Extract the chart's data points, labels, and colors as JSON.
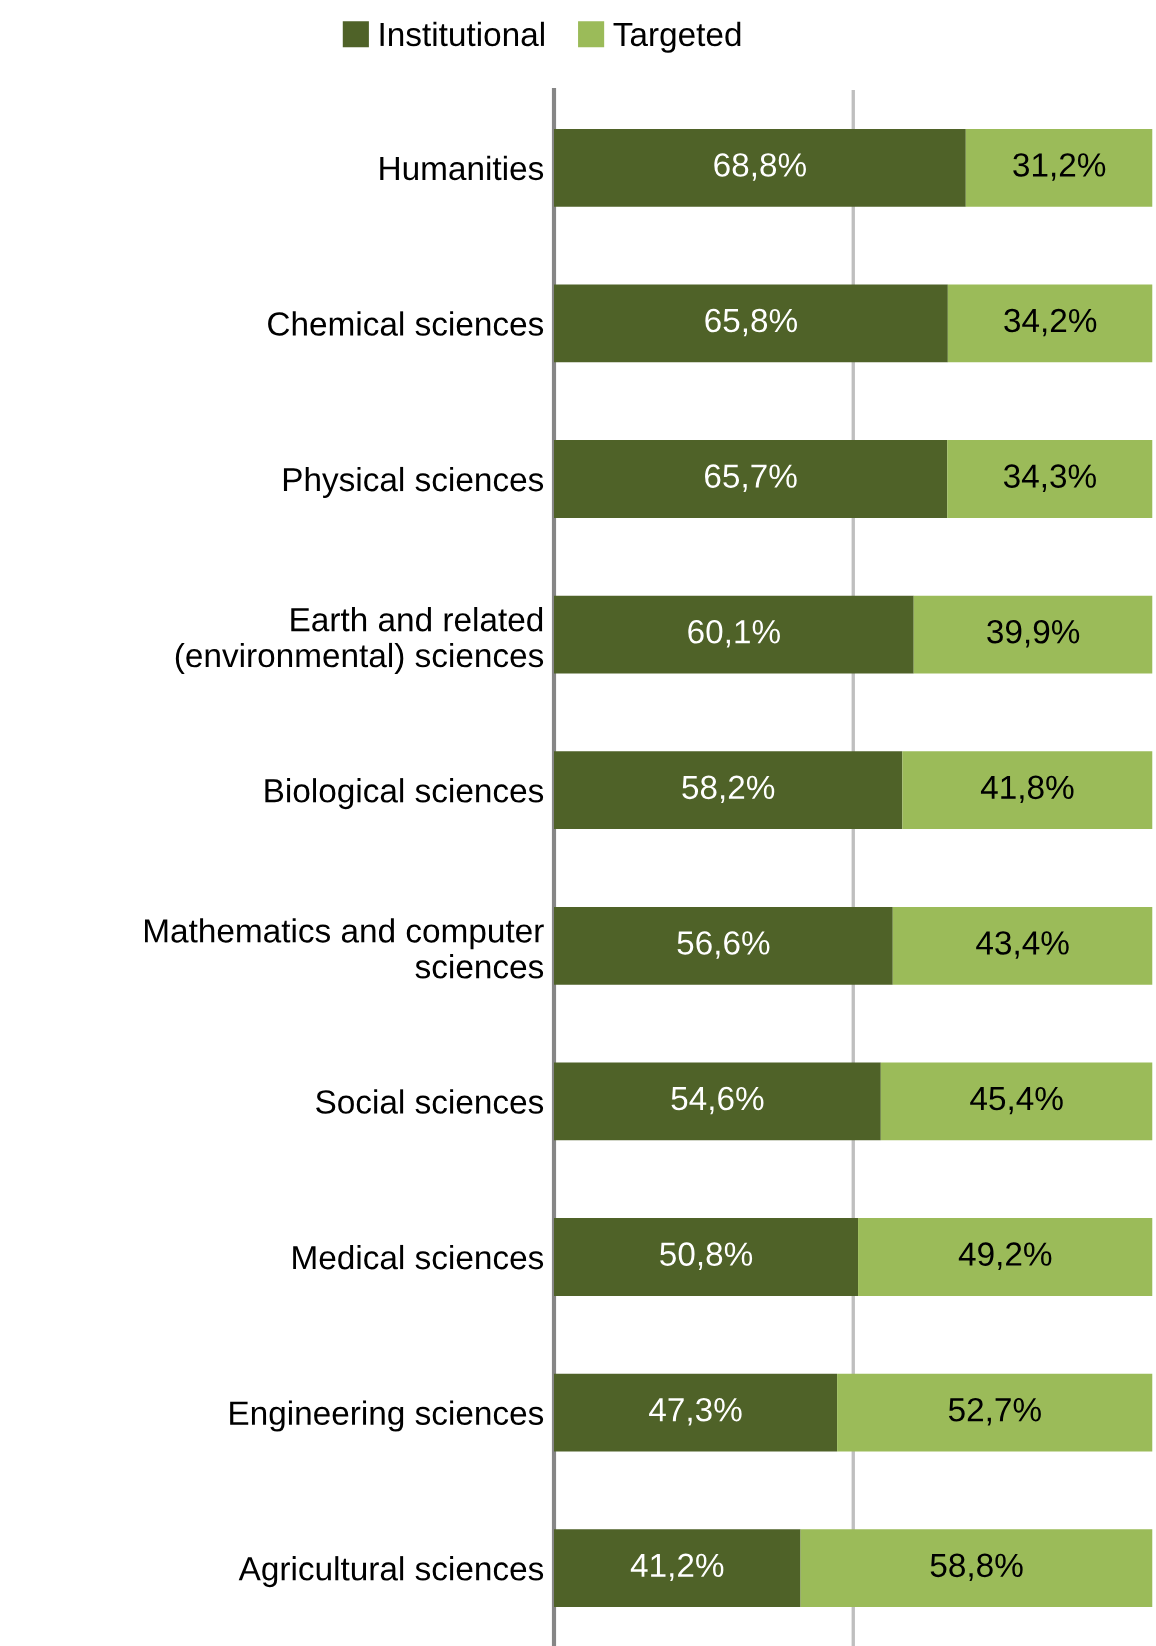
{
  "chart_data": {
    "type": "bar",
    "orientation": "horizontal",
    "stacked": true,
    "categories": [
      "Humanities",
      "Chemical sciences",
      "Physical sciences",
      "Earth and related\n(environmental) sciences",
      "Biological sciences",
      "Mathematics and computer\nsciences",
      "Social sciences",
      "Medical sciences",
      "Engineering sciences",
      "Agricultural sciences"
    ],
    "series": [
      {
        "name": "Institutional",
        "color": "#4f6228",
        "values": [
          68.8,
          65.8,
          65.7,
          60.1,
          58.2,
          56.6,
          54.6,
          50.8,
          47.3,
          41.2
        ],
        "value_labels": [
          "68,8%",
          "65,8%",
          "65,7%",
          "60,1%",
          "58,2%",
          "56,6%",
          "54,6%",
          "50,8%",
          "47,3%",
          "41,2%"
        ]
      },
      {
        "name": "Targeted",
        "color": "#9bbb59",
        "values": [
          31.2,
          34.2,
          34.3,
          39.9,
          41.8,
          43.4,
          45.4,
          49.2,
          52.7,
          58.8
        ],
        "value_labels": [
          "31,2%",
          "34,2%",
          "34,3%",
          "39,9%",
          "41,8%",
          "43,4%",
          "45,4%",
          "49,2%",
          "52,7%",
          "58,8%"
        ]
      }
    ],
    "xlim": [
      0,
      100
    ],
    "ref_lines": [
      {
        "axis": "x",
        "value": 50,
        "color": "#bfbfbf"
      }
    ],
    "tick_labels": "y",
    "legend": "top"
  }
}
